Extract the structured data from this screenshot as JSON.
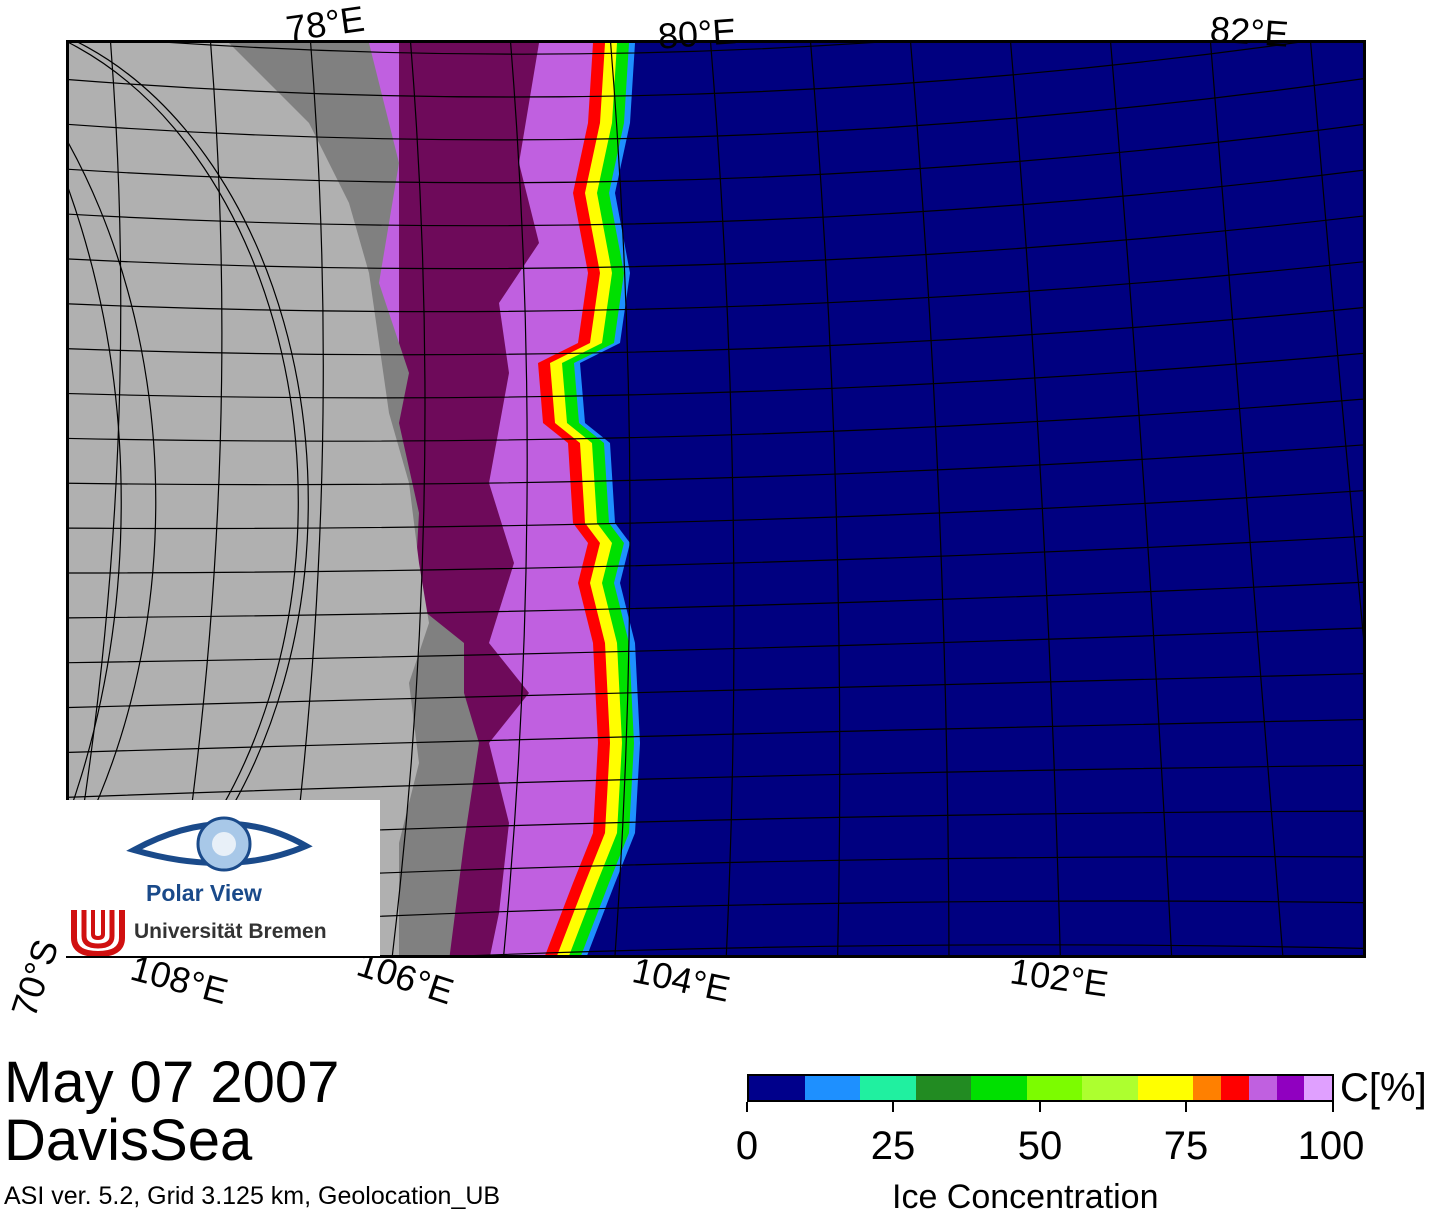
{
  "map": {
    "date": "May 07 2007",
    "region": "DavisSea",
    "info": "ASI ver. 5.2,  Grid 3.125 km, Geolocation_UB",
    "top_lon_labels": [
      "78°E",
      "80°E",
      "82°E"
    ],
    "bottom_lon_labels": [
      "108°E",
      "106°E",
      "104°E",
      "102°E"
    ],
    "lat_label": "70°S",
    "colors": {
      "ocean": "#000080",
      "land": "#b0b0b0",
      "ice_shelf": "#808080",
      "dense_ice": "#6e0a5a",
      "grid": "#000000"
    }
  },
  "colorbar": {
    "unit": "C[%]",
    "title": "Ice Concentration",
    "tick_labels": [
      "0",
      "25",
      "50",
      "75",
      "100"
    ],
    "colors": [
      "#00008b",
      "#1e90ff",
      "#20f0a0",
      "#228b22",
      "#00e000",
      "#7cfc00",
      "#adff2f",
      "#ffff00",
      "#ff8000",
      "#ff0000",
      "#c060e0",
      "#9000c0",
      "#e0a0ff"
    ]
  },
  "logo": {
    "title": "Polar View",
    "university": "Universität Bremen"
  }
}
